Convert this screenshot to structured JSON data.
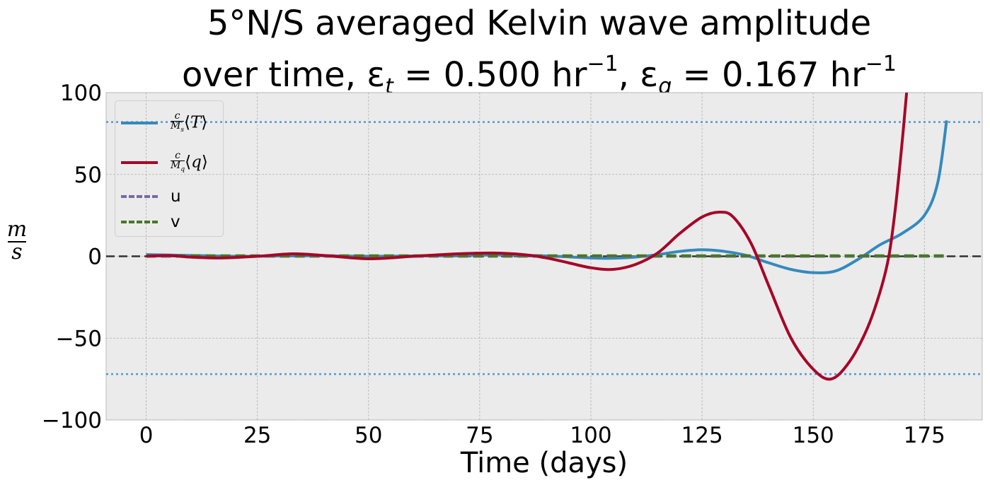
{
  "title": {
    "line1": "5°N/S averaged Kelvin wave amplitude",
    "line2_prefix": "over time, ε",
    "eps_t_sub": "t",
    "eps_t_value": " = 0.500 hr",
    "unit_sup": "−1",
    "sep": ",  ε",
    "eps_q_sub": "q",
    "eps_q_value": " = 0.167 hr"
  },
  "colors": {
    "background": "#ebebeb",
    "T": "#348abd",
    "q": "#a60628",
    "u": "#7a68a6",
    "v": "#467821",
    "zero_line": "#333333",
    "ref_dotted": "#4f9ad1"
  },
  "legend": [
    {
      "label": "c/M_s ⟨T⟩",
      "style": "solid",
      "series": "T"
    },
    {
      "label": "c/M_q ⟨q⟩",
      "style": "solid",
      "series": "q"
    },
    {
      "label": "u",
      "style": "dashed",
      "series": "u"
    },
    {
      "label": "v",
      "style": "dashed",
      "series": "v"
    }
  ],
  "chart_data": {
    "type": "line",
    "xlabel": "Time (days)",
    "ylabel": "m/s",
    "xlim": [
      -9,
      188
    ],
    "ylim": [
      -100,
      100
    ],
    "xticks": [
      0,
      25,
      50,
      75,
      100,
      125,
      150,
      175
    ],
    "yticks": [
      -100,
      -50,
      0,
      50,
      100
    ],
    "ytick_labels": [
      "−100",
      "−50",
      "0",
      "50",
      "100"
    ],
    "grid": true,
    "legend_position": "top-left",
    "hlines": [
      {
        "y": 0,
        "style": "dashed"
      },
      {
        "y": 82,
        "style": "dotted"
      },
      {
        "y": -72,
        "style": "dotted"
      }
    ],
    "series": [
      {
        "name": "c/M_s ⟨T⟩",
        "key": "T",
        "x": [
          0,
          10,
          20,
          30,
          40,
          50,
          60,
          70,
          80,
          90,
          100,
          105,
          110,
          115,
          120,
          125,
          130,
          135,
          140,
          145,
          150,
          155,
          160,
          165,
          170,
          175,
          178,
          180
        ],
        "y": [
          1,
          0.5,
          0,
          0.2,
          0.3,
          0,
          0.2,
          0.5,
          0.8,
          0.2,
          -1,
          -1.2,
          -0.5,
          1,
          3,
          4,
          3,
          0.5,
          -4,
          -8,
          -10,
          -9,
          -2,
          7,
          14,
          25,
          45,
          83
        ]
      },
      {
        "name": "c/M_q ⟨q⟩",
        "key": "q",
        "x": [
          0,
          5,
          10,
          17,
          25,
          33,
          40,
          50,
          60,
          70,
          78,
          85,
          90,
          95,
          100,
          105,
          110,
          115,
          120,
          125,
          129,
          132,
          136,
          140,
          145,
          150,
          154,
          158,
          162,
          165,
          167,
          168.5,
          170,
          171
        ],
        "y": [
          0,
          0.5,
          -0.5,
          -1,
          0,
          1.5,
          0.5,
          -1.5,
          0,
          1.5,
          2,
          1,
          -1,
          -4,
          -7,
          -8,
          -5,
          2,
          14,
          24,
          27,
          24,
          8,
          -18,
          -50,
          -69,
          -75,
          -65,
          -45,
          -22,
          0,
          30,
          70,
          100
        ]
      },
      {
        "name": "u",
        "key": "u",
        "x": [
          0,
          180
        ],
        "y": [
          0,
          0
        ]
      },
      {
        "name": "v",
        "key": "v",
        "x": [
          0,
          180
        ],
        "y": [
          0.3,
          0.3
        ]
      }
    ]
  }
}
